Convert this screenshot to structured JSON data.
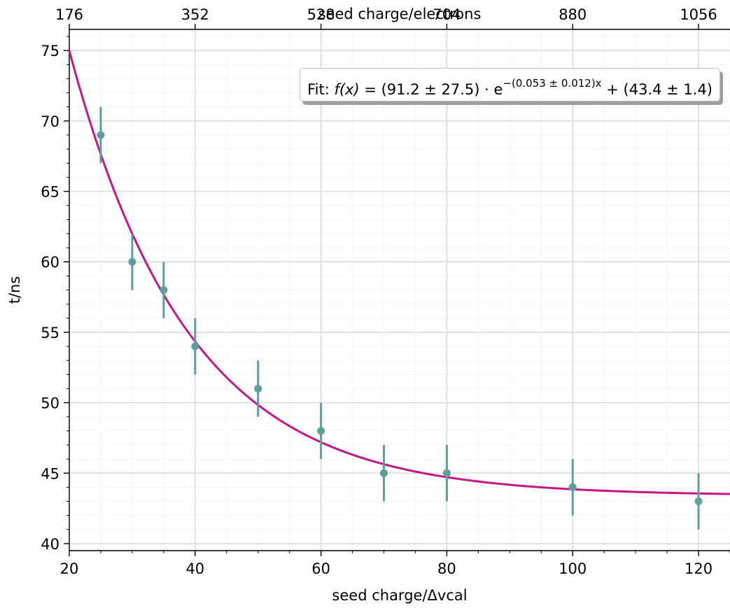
{
  "chart_data": {
    "type": "scatter",
    "xlabel": "seed charge/Δvcal",
    "ylabel": "t/ns",
    "x2label": "seed charge/electrons",
    "xlim": [
      20,
      125
    ],
    "ylim": [
      39.5,
      76.5
    ],
    "xticks": [
      "20",
      "40",
      "60",
      "80",
      "100",
      "120"
    ],
    "yticks": [
      "40",
      "45",
      "50",
      "55",
      "60",
      "65",
      "70",
      "75"
    ],
    "x2ticks": [
      {
        "at": 20,
        "label": "176"
      },
      {
        "at": 40,
        "label": "352"
      },
      {
        "at": 60,
        "label": "528"
      },
      {
        "at": 80,
        "label": "704"
      },
      {
        "at": 100,
        "label": "880"
      },
      {
        "at": 120,
        "label": "1056"
      }
    ],
    "grid": true,
    "series": [
      {
        "kind": "errorbar",
        "color": "#5f9ea0",
        "x": [
          25,
          30,
          35,
          40,
          50,
          60,
          70,
          80,
          100,
          120
        ],
        "y": [
          69,
          60,
          58,
          54,
          51,
          48,
          45,
          45,
          44,
          43
        ],
        "yerr": [
          2,
          2,
          2,
          2,
          2,
          2,
          2,
          2,
          2,
          2
        ]
      },
      {
        "kind": "fit",
        "color": "#c71585",
        "function": "a*exp(-b*x)+c",
        "a": 91.2,
        "b": 0.053,
        "c": 43.4
      }
    ],
    "legend": {
      "position": "top-right",
      "prefix": "Fit: ",
      "fx": "f(x)",
      "eq": " = (91.2 ± 27.5) · e",
      "exp": "−(0.053 ± 0.012)x",
      "tail": " + (43.4 ± 1.4)"
    }
  }
}
